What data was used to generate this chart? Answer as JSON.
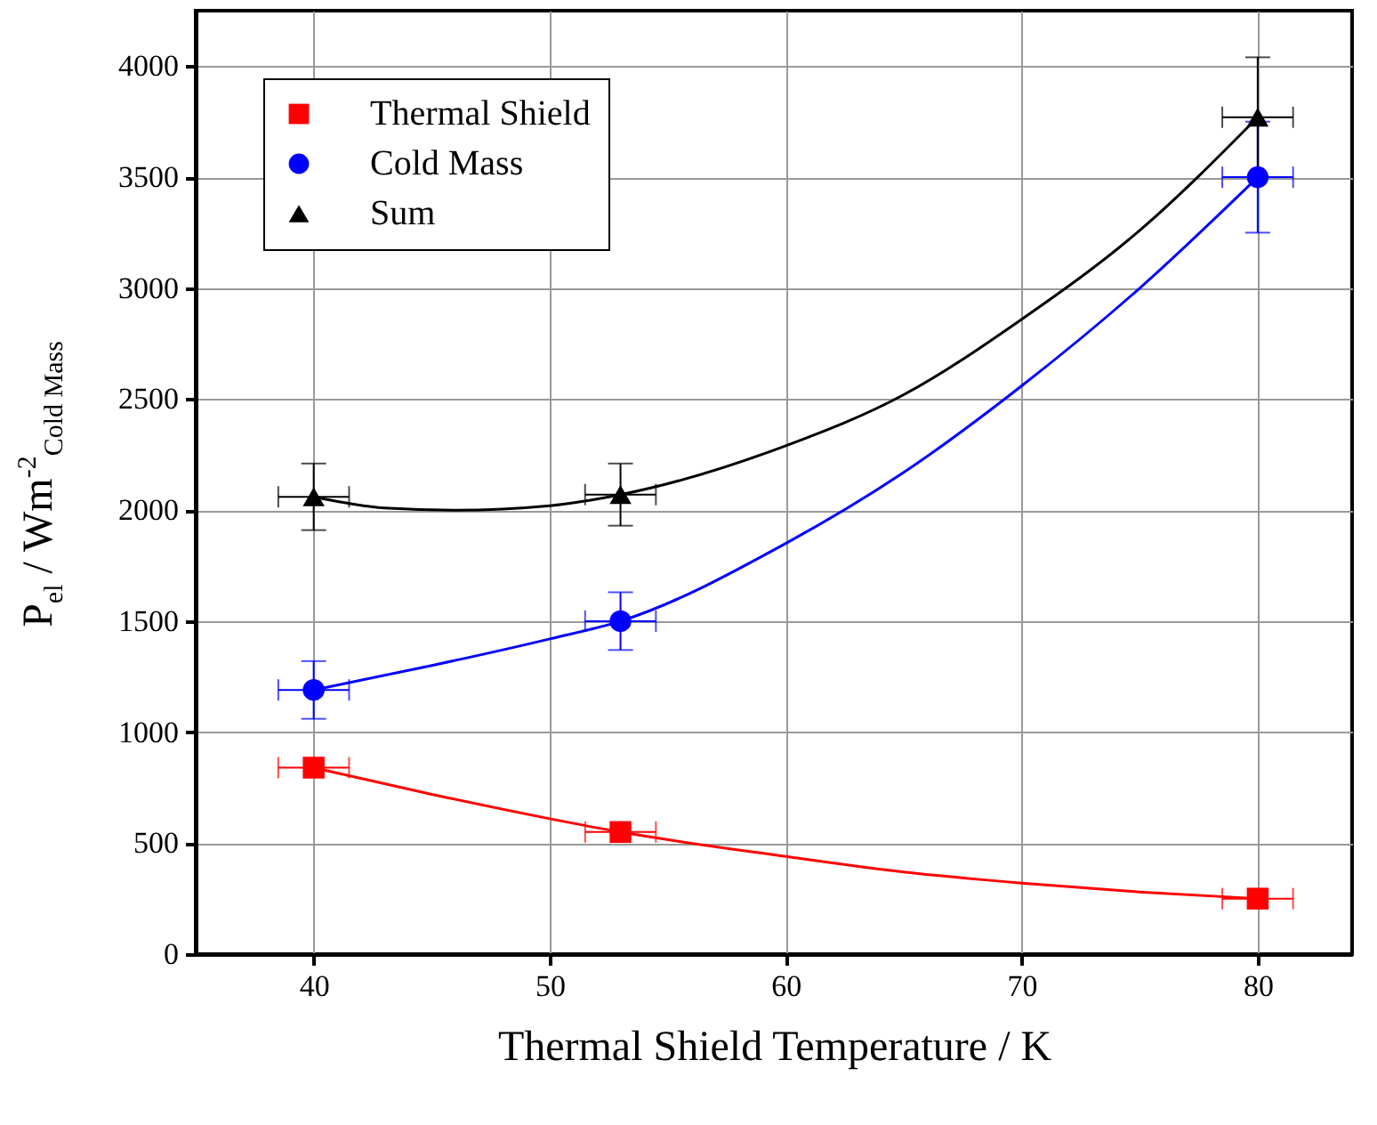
{
  "chart_data": {
    "type": "scatter",
    "xlabel": "Thermal Shield Temperature / K",
    "ylabel": "P$_{el}$ / Wm$^{-2}$$_{Cold Mass}$",
    "xlim": [
      35,
      84
    ],
    "xticks": [
      40,
      50,
      60,
      70,
      80
    ],
    "ylim": [
      0,
      4250
    ],
    "yticks": [
      0,
      500,
      1000,
      1500,
      2000,
      2500,
      3000,
      3500,
      4000
    ],
    "grid": true,
    "legend": "top left",
    "series": [
      {
        "name": "Thermal Shield",
        "marker": "square",
        "color": "#ff0000",
        "x": [
          40,
          53,
          80
        ],
        "values": [
          840,
          550,
          250
        ],
        "xerrors": [
          1.5,
          1.5,
          1.5
        ]
      },
      {
        "name": "Cold Mass",
        "marker": "circle",
        "color": "#0000ff",
        "x": [
          40,
          53,
          80
        ],
        "values": [
          1190,
          1500,
          3500
        ],
        "errors": [
          130,
          130,
          250
        ],
        "xerrors": [
          1.5,
          1.5,
          1.5
        ]
      },
      {
        "name": "Sum",
        "marker": "triangle",
        "color": "#000000",
        "x": [
          40,
          53,
          80
        ],
        "values": [
          2060,
          2070,
          3770
        ],
        "errors": [
          150,
          140,
          270
        ],
        "xerrors": [
          1.5,
          1.5,
          1.5
        ]
      },
      {
        "type": "line",
        "color": "#ff0000",
        "x": [
          40,
          45,
          50,
          53,
          60,
          65,
          70,
          75,
          80
        ],
        "values": [
          840,
          720,
          610,
          550,
          440,
          370,
          320,
          280,
          250
        ]
      },
      {
        "type": "line",
        "color": "#0000ff",
        "x": [
          40,
          45,
          50,
          53,
          60,
          65,
          70,
          75,
          80
        ],
        "values": [
          1190,
          1300,
          1420,
          1500,
          1850,
          2170,
          2560,
          3000,
          3500
        ]
      },
      {
        "type": "line",
        "color": "#000000",
        "x": [
          40,
          43,
          46,
          50,
          53,
          60,
          65,
          70,
          75,
          80
        ],
        "values": [
          2060,
          2010,
          2000,
          2020,
          2070,
          2290,
          2520,
          2860,
          3260,
          3770
        ]
      }
    ]
  }
}
